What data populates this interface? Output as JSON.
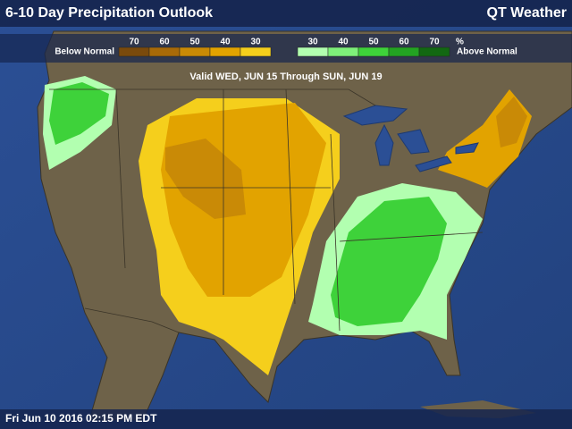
{
  "header": {
    "title": "6-10 Day Precipitation Outlook",
    "brand": "QT Weather"
  },
  "legend": {
    "below_label": "Below Normal",
    "above_label": "Above Normal",
    "unit": "%",
    "below": [
      {
        "label": "70",
        "color": "#7a4a0c"
      },
      {
        "label": "60",
        "color": "#a86a08"
      },
      {
        "label": "50",
        "color": "#c98a06"
      },
      {
        "label": "40",
        "color": "#e2a300"
      },
      {
        "label": "30",
        "color": "#f5cf1c"
      }
    ],
    "above": [
      {
        "label": "30",
        "color": "#b2ffb0"
      },
      {
        "label": "40",
        "color": "#7ef07a"
      },
      {
        "label": "50",
        "color": "#3ed23a"
      },
      {
        "label": "60",
        "color": "#23a322"
      },
      {
        "label": "70",
        "color": "#126812"
      }
    ]
  },
  "valid": "Valid WED, JUN 15 Through SUN, JUN 19",
  "timestamp": "Fri Jun 10 2016 02:15 PM EDT"
}
